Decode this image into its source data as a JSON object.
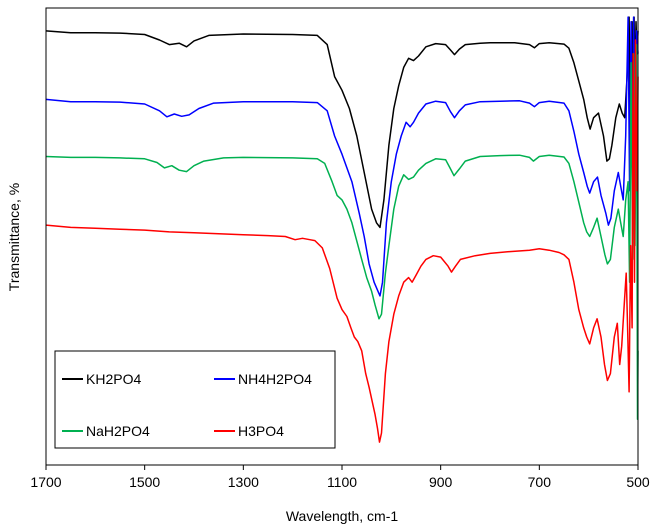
{
  "chart_data": {
    "type": "line",
    "title": "",
    "xlabel": "Wavelength, cm-1",
    "ylabel": "Transmittance, %",
    "x_range": [
      1700,
      500
    ],
    "x_reversed": true,
    "x_ticks": [
      1700,
      1500,
      1300,
      1100,
      900,
      700,
      500
    ],
    "y_range": [
      0,
      100
    ],
    "y_tick_labels_shown": false,
    "grid": false,
    "legend": {
      "placement": "bottom-left",
      "columns": 2,
      "entries": [
        "KH2PO4",
        "NH4H2PO4",
        "NaH2PO4",
        "H3PO4"
      ]
    },
    "series": [
      {
        "name": "KH2PO4",
        "color": "#000000",
        "points": [
          [
            1700,
            95
          ],
          [
            1650,
            94.6
          ],
          [
            1600,
            94.6
          ],
          [
            1550,
            94.5
          ],
          [
            1500,
            94.2
          ],
          [
            1470,
            93
          ],
          [
            1450,
            92
          ],
          [
            1430,
            92.3
          ],
          [
            1415,
            91.5
          ],
          [
            1400,
            92.8
          ],
          [
            1370,
            94
          ],
          [
            1300,
            94.3
          ],
          [
            1200,
            94.2
          ],
          [
            1150,
            94
          ],
          [
            1130,
            92
          ],
          [
            1115,
            85
          ],
          [
            1100,
            82
          ],
          [
            1085,
            78
          ],
          [
            1070,
            72
          ],
          [
            1055,
            64
          ],
          [
            1040,
            56
          ],
          [
            1030,
            53
          ],
          [
            1023,
            52
          ],
          [
            1015,
            58
          ],
          [
            1005,
            70
          ],
          [
            995,
            78
          ],
          [
            985,
            83
          ],
          [
            975,
            87
          ],
          [
            965,
            89
          ],
          [
            955,
            88.5
          ],
          [
            945,
            89.5
          ],
          [
            930,
            91.5
          ],
          [
            910,
            92.2
          ],
          [
            890,
            92
          ],
          [
            880,
            90.8
          ],
          [
            872,
            89.8
          ],
          [
            862,
            91
          ],
          [
            850,
            92
          ],
          [
            820,
            92.3
          ],
          [
            800,
            92.4
          ],
          [
            750,
            92.4
          ],
          [
            720,
            92
          ],
          [
            710,
            91.3
          ],
          [
            700,
            92.2
          ],
          [
            680,
            92.4
          ],
          [
            650,
            92.1
          ],
          [
            640,
            91.2
          ],
          [
            630,
            88
          ],
          [
            620,
            84
          ],
          [
            610,
            80
          ],
          [
            603,
            76
          ],
          [
            597,
            73.5
          ],
          [
            590,
            76
          ],
          [
            580,
            77
          ],
          [
            570,
            72
          ],
          [
            563,
            66.5
          ],
          [
            558,
            67
          ],
          [
            553,
            70
          ],
          [
            545,
            76
          ],
          [
            538,
            79
          ],
          [
            532,
            77
          ],
          [
            527,
            76
          ],
          [
            522,
            85
          ],
          [
            518,
            98
          ],
          [
            515,
            72
          ],
          [
            512,
            97
          ],
          [
            510,
            75
          ],
          [
            508,
            98
          ],
          [
            506,
            80
          ],
          [
            504,
            97
          ],
          [
            502,
            90
          ],
          [
            500,
            95
          ]
        ]
      },
      {
        "name": "NH4H2PO4",
        "color": "#0000ff",
        "points": [
          [
            1700,
            80
          ],
          [
            1650,
            79.5
          ],
          [
            1600,
            79.5
          ],
          [
            1550,
            79.4
          ],
          [
            1500,
            79
          ],
          [
            1470,
            77.5
          ],
          [
            1455,
            76.2
          ],
          [
            1440,
            76.8
          ],
          [
            1425,
            76.3
          ],
          [
            1410,
            76.6
          ],
          [
            1390,
            78
          ],
          [
            1360,
            79.2
          ],
          [
            1300,
            79.5
          ],
          [
            1200,
            79.5
          ],
          [
            1150,
            79.3
          ],
          [
            1130,
            77.5
          ],
          [
            1115,
            72
          ],
          [
            1100,
            68
          ],
          [
            1090,
            65
          ],
          [
            1080,
            62
          ],
          [
            1065,
            55
          ],
          [
            1055,
            50
          ],
          [
            1045,
            44
          ],
          [
            1035,
            40
          ],
          [
            1027,
            38
          ],
          [
            1023,
            37
          ],
          [
            1018,
            40
          ],
          [
            1010,
            53
          ],
          [
            1000,
            62
          ],
          [
            990,
            68
          ],
          [
            980,
            72
          ],
          [
            970,
            75
          ],
          [
            962,
            74
          ],
          [
            955,
            75
          ],
          [
            945,
            77
          ],
          [
            930,
            79
          ],
          [
            910,
            79.6
          ],
          [
            890,
            79.3
          ],
          [
            880,
            77.3
          ],
          [
            872,
            76
          ],
          [
            862,
            77.5
          ],
          [
            850,
            78.8
          ],
          [
            820,
            79.5
          ],
          [
            780,
            79.6
          ],
          [
            740,
            79.7
          ],
          [
            720,
            79.2
          ],
          [
            710,
            78.4
          ],
          [
            700,
            79.3
          ],
          [
            680,
            79.6
          ],
          [
            650,
            79.2
          ],
          [
            640,
            77.5
          ],
          [
            630,
            73
          ],
          [
            620,
            68
          ],
          [
            610,
            64
          ],
          [
            603,
            61
          ],
          [
            598,
            59.5
          ],
          [
            590,
            62
          ],
          [
            582,
            63
          ],
          [
            575,
            59
          ],
          [
            565,
            55
          ],
          [
            560,
            52.5
          ],
          [
            555,
            54
          ],
          [
            548,
            60
          ],
          [
            540,
            64
          ],
          [
            535,
            61
          ],
          [
            530,
            58
          ],
          [
            525,
            72
          ],
          [
            520,
            98
          ],
          [
            517,
            60
          ],
          [
            514,
            97
          ],
          [
            511,
            62
          ],
          [
            509,
            98
          ],
          [
            506,
            70
          ],
          [
            503,
            95
          ],
          [
            500,
            90
          ]
        ]
      },
      {
        "name": "NaH2PO4",
        "color": "#00b050",
        "points": [
          [
            1700,
            67.5
          ],
          [
            1650,
            67.3
          ],
          [
            1600,
            67.3
          ],
          [
            1550,
            67.2
          ],
          [
            1500,
            67
          ],
          [
            1475,
            66.2
          ],
          [
            1460,
            65
          ],
          [
            1445,
            65.5
          ],
          [
            1430,
            64.5
          ],
          [
            1415,
            64.2
          ],
          [
            1400,
            65.5
          ],
          [
            1380,
            66.5
          ],
          [
            1340,
            67.2
          ],
          [
            1300,
            67.3
          ],
          [
            1200,
            67.2
          ],
          [
            1150,
            67
          ],
          [
            1135,
            66
          ],
          [
            1120,
            62
          ],
          [
            1110,
            59
          ],
          [
            1100,
            58
          ],
          [
            1090,
            56
          ],
          [
            1080,
            53
          ],
          [
            1070,
            49
          ],
          [
            1060,
            45
          ],
          [
            1050,
            41
          ],
          [
            1040,
            38
          ],
          [
            1033,
            35
          ],
          [
            1025,
            32
          ],
          [
            1020,
            33
          ],
          [
            1012,
            42
          ],
          [
            1005,
            48
          ],
          [
            995,
            56
          ],
          [
            985,
            61
          ],
          [
            975,
            63.5
          ],
          [
            965,
            62.5
          ],
          [
            955,
            63
          ],
          [
            945,
            64.5
          ],
          [
            930,
            66
          ],
          [
            910,
            67
          ],
          [
            890,
            66.8
          ],
          [
            880,
            64.8
          ],
          [
            873,
            63.3
          ],
          [
            862,
            64.8
          ],
          [
            850,
            66.5
          ],
          [
            820,
            67.5
          ],
          [
            780,
            67.7
          ],
          [
            740,
            67.8
          ],
          [
            720,
            67.3
          ],
          [
            712,
            66.5
          ],
          [
            700,
            67.5
          ],
          [
            680,
            67.8
          ],
          [
            650,
            67.4
          ],
          [
            640,
            66
          ],
          [
            630,
            62
          ],
          [
            620,
            57.5
          ],
          [
            610,
            53
          ],
          [
            604,
            51
          ],
          [
            598,
            50
          ],
          [
            590,
            52
          ],
          [
            583,
            54
          ],
          [
            575,
            50
          ],
          [
            567,
            46
          ],
          [
            562,
            44
          ],
          [
            556,
            45
          ],
          [
            548,
            52
          ],
          [
            540,
            56
          ],
          [
            535,
            53
          ],
          [
            530,
            50
          ],
          [
            525,
            58
          ],
          [
            520,
            62
          ],
          [
            517,
            40
          ],
          [
            514,
            88
          ],
          [
            511,
            45
          ],
          [
            509,
            90
          ],
          [
            506,
            48
          ],
          [
            503,
            92
          ],
          [
            501,
            10
          ],
          [
            500,
            25
          ]
        ]
      },
      {
        "name": "H3PO4",
        "color": "#ff0000",
        "points": [
          [
            1700,
            52.5
          ],
          [
            1650,
            52
          ],
          [
            1600,
            51.8
          ],
          [
            1550,
            51.6
          ],
          [
            1500,
            51.4
          ],
          [
            1450,
            51
          ],
          [
            1400,
            50.8
          ],
          [
            1350,
            50.6
          ],
          [
            1300,
            50.4
          ],
          [
            1250,
            50.2
          ],
          [
            1215,
            50
          ],
          [
            1195,
            49.3
          ],
          [
            1180,
            49.6
          ],
          [
            1165,
            49.3
          ],
          [
            1155,
            49.1
          ],
          [
            1140,
            47.5
          ],
          [
            1125,
            43
          ],
          [
            1110,
            36.5
          ],
          [
            1100,
            34
          ],
          [
            1090,
            32.5
          ],
          [
            1082,
            30
          ],
          [
            1075,
            28
          ],
          [
            1068,
            27
          ],
          [
            1060,
            25
          ],
          [
            1052,
            20
          ],
          [
            1045,
            17
          ],
          [
            1038,
            13.5
          ],
          [
            1033,
            11
          ],
          [
            1028,
            8
          ],
          [
            1024,
            5
          ],
          [
            1020,
            7
          ],
          [
            1012,
            20
          ],
          [
            1005,
            27
          ],
          [
            995,
            33
          ],
          [
            985,
            37
          ],
          [
            975,
            40
          ],
          [
            965,
            41
          ],
          [
            958,
            40
          ],
          [
            950,
            41.5
          ],
          [
            940,
            43.5
          ],
          [
            930,
            45
          ],
          [
            915,
            45.8
          ],
          [
            900,
            45.5
          ],
          [
            885,
            43.5
          ],
          [
            878,
            42.2
          ],
          [
            870,
            43.5
          ],
          [
            860,
            45
          ],
          [
            830,
            45.8
          ],
          [
            800,
            46.3
          ],
          [
            760,
            46.7
          ],
          [
            720,
            47
          ],
          [
            700,
            47.3
          ],
          [
            680,
            47
          ],
          [
            660,
            46.5
          ],
          [
            650,
            46
          ],
          [
            640,
            45
          ],
          [
            630,
            40
          ],
          [
            620,
            34
          ],
          [
            610,
            30
          ],
          [
            604,
            28
          ],
          [
            598,
            26.5
          ],
          [
            590,
            30
          ],
          [
            583,
            32
          ],
          [
            575,
            28
          ],
          [
            568,
            22
          ],
          [
            562,
            18.5
          ],
          [
            556,
            20
          ],
          [
            548,
            28
          ],
          [
            542,
            31
          ],
          [
            537,
            22
          ],
          [
            533,
            26
          ],
          [
            528,
            35
          ],
          [
            524,
            42
          ],
          [
            521,
            30
          ],
          [
            518,
            16
          ],
          [
            515,
            48
          ],
          [
            512,
            30
          ],
          [
            510,
            90
          ],
          [
            507,
            40
          ],
          [
            505,
            93
          ],
          [
            502,
            60
          ],
          [
            500,
            85
          ]
        ]
      }
    ]
  }
}
